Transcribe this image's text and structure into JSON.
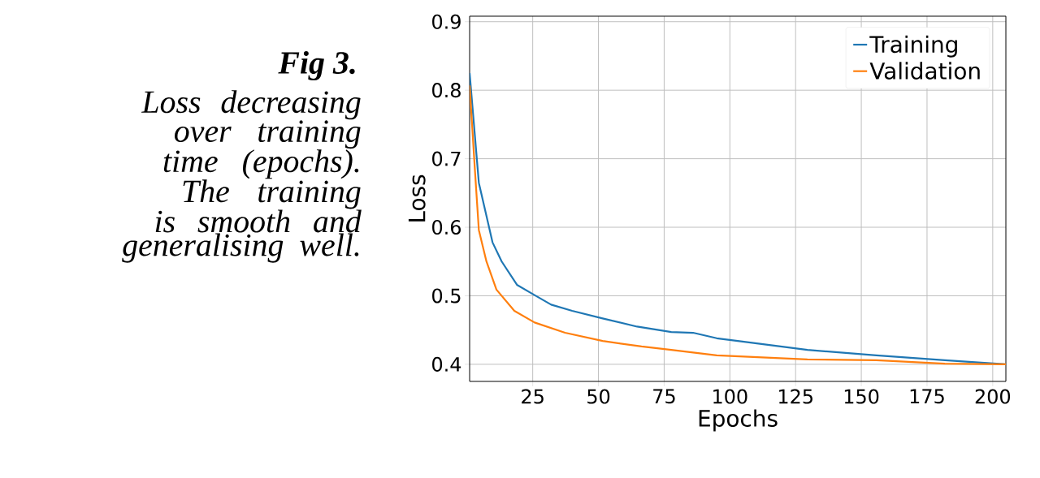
{
  "chart_data": {
    "type": "line",
    "title": "Fig 3.",
    "subtitle": "Loss decreasing over training time (epochs). The training is smooth and generalising well.",
    "xlabel": "Epochs",
    "ylabel": "Loss",
    "xlim": [
      1,
      205
    ],
    "ylim": [
      0.375,
      0.908
    ],
    "xticks": [
      25,
      50,
      75,
      100,
      125,
      150,
      175,
      200
    ],
    "yticks": [
      0.4,
      0.5,
      0.6,
      0.7,
      0.8,
      0.9
    ],
    "grid": true,
    "legend": "top right",
    "marker": "none",
    "line_style": "solid",
    "series": [
      {
        "name": "Training",
        "color": "#1f77b4",
        "x": [
          1,
          4.5,
          9.7,
          13.2,
          19,
          25.7,
          32,
          40,
          51.6,
          64.7,
          77.7,
          86,
          95,
          103,
          129.5,
          155.7,
          181.8,
          205
        ],
        "values": [
          0.825,
          0.665,
          0.578,
          0.55,
          0.516,
          0.501,
          0.487,
          0.478,
          0.467,
          0.455,
          0.447,
          0.446,
          0.438,
          0.434,
          0.421,
          0.413,
          0.406,
          0.4
        ]
      },
      {
        "name": "Validation",
        "color": "#ff7f0e",
        "x": [
          1,
          3,
          4.5,
          7.4,
          11.2,
          18,
          25.7,
          37.3,
          51.6,
          66.4,
          77.7,
          95,
          129.5,
          155.7,
          181.8,
          205
        ],
        "values": [
          0.807,
          0.684,
          0.596,
          0.55,
          0.509,
          0.478,
          0.461,
          0.446,
          0.434,
          0.426,
          0.421,
          0.413,
          0.407,
          0.406,
          0.401,
          0.4
        ]
      }
    ]
  }
}
